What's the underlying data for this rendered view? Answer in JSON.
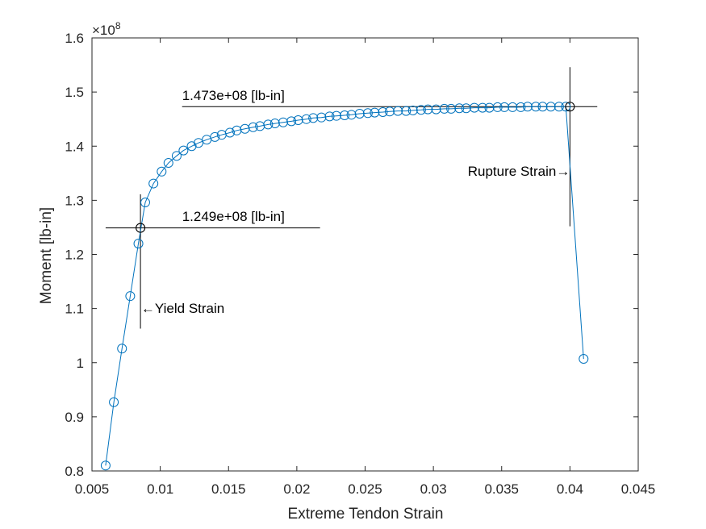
{
  "chart_data": {
    "type": "line",
    "title": "",
    "xlabel": "Extreme Tendon Strain",
    "ylabel": "Moment [lb-in]",
    "y_exponent_label": "×10",
    "y_exponent": "8",
    "xlim": [
      0.005,
      0.045
    ],
    "ylim": [
      0.8,
      1.6
    ],
    "y_scale_factor": 100000000,
    "x_ticks": [
      0.005,
      0.01,
      0.015,
      0.02,
      0.025,
      0.03,
      0.035,
      0.04,
      0.045
    ],
    "x_tick_labels": [
      "0.005",
      "0.01",
      "0.015",
      "0.02",
      "0.025",
      "0.03",
      "0.035",
      "0.04",
      "0.045"
    ],
    "y_ticks": [
      0.8,
      0.9,
      1.0,
      1.1,
      1.2,
      1.3,
      1.4,
      1.5,
      1.6
    ],
    "y_tick_labels": [
      "0.8",
      "0.9",
      "1",
      "1.1",
      "1.2",
      "1.3",
      "1.4",
      "1.5",
      "1.6"
    ],
    "grid": false,
    "colors": {
      "series": "#0072BD",
      "reference": "#000000",
      "axes": "#262626"
    },
    "series": [
      {
        "marker": "circle",
        "x": [
          0.006,
          0.0066,
          0.0072,
          0.0078,
          0.0084,
          0.0089,
          0.0095,
          0.0101,
          0.0106,
          0.0112,
          0.0117,
          0.0123,
          0.0128,
          0.0134,
          0.014,
          0.0145,
          0.0151,
          0.0156,
          0.0162,
          0.0168,
          0.0173,
          0.0179,
          0.0184,
          0.019,
          0.0196,
          0.0201,
          0.0207,
          0.0212,
          0.0218,
          0.0224,
          0.0229,
          0.0235,
          0.024,
          0.0246,
          0.0252,
          0.0257,
          0.0263,
          0.0268,
          0.0274,
          0.028,
          0.0285,
          0.0291,
          0.0296,
          0.0302,
          0.0308,
          0.0313,
          0.0319,
          0.0324,
          0.033,
          0.0336,
          0.0341,
          0.0347,
          0.0352,
          0.0358,
          0.0364,
          0.0369,
          0.0375,
          0.038,
          0.0386,
          0.0392,
          0.0397,
          0.041
        ],
        "y": [
          0.81,
          0.927,
          1.026,
          1.123,
          1.22,
          1.296,
          1.331,
          1.353,
          1.369,
          1.382,
          1.392,
          1.4,
          1.406,
          1.412,
          1.417,
          1.421,
          1.425,
          1.429,
          1.432,
          1.435,
          1.437,
          1.44,
          1.442,
          1.444,
          1.446,
          1.448,
          1.45,
          1.452,
          1.453,
          1.455,
          1.456,
          1.457,
          1.458,
          1.46,
          1.461,
          1.462,
          1.463,
          1.464,
          1.465,
          1.465,
          1.466,
          1.467,
          1.468,
          1.468,
          1.469,
          1.469,
          1.47,
          1.47,
          1.471,
          1.471,
          1.471,
          1.472,
          1.472,
          1.472,
          1.472,
          1.473,
          1.473,
          1.473,
          1.473,
          1.473,
          1.473,
          1.007
        ]
      }
    ],
    "reference_points": [
      {
        "name": "yield",
        "x": 0.00855,
        "y": 1.249
      },
      {
        "name": "rupture",
        "x": 0.04,
        "y": 1.473
      }
    ],
    "reference_lines": {
      "yield_h": {
        "x0": 0.006,
        "x1": 0.0217,
        "y": 1.249
      },
      "yield_v": {
        "x": 0.00855,
        "y0": 1.063,
        "y1": 1.311
      },
      "rupture_h": {
        "x0": 0.0116,
        "x1": 0.042,
        "y": 1.473
      },
      "rupture_v": {
        "x": 0.04,
        "y0": 1.252,
        "y1": 1.546
      }
    },
    "annotations": {
      "yield_value": "1.249e+08 [lb-in]",
      "rupture_value": "1.473e+08 [lb-in]",
      "yield_label": "←Yield Strain",
      "rupture_label": "Rupture Strain→"
    },
    "annotation_anchors": {
      "yield_value": {
        "x": 0.0116,
        "y": 1.262
      },
      "rupture_value": {
        "x": 0.0116,
        "y": 1.485
      },
      "yield_label": {
        "x": 0.0086,
        "y": 1.092
      },
      "rupture_label": {
        "x": 0.04,
        "y": 1.345
      }
    }
  }
}
